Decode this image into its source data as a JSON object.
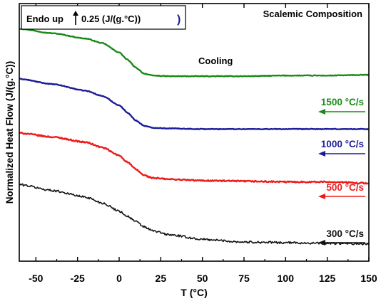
{
  "chart_data": {
    "type": "line",
    "title": "Scalemic Composition",
    "annotation": "Cooling",
    "scale_note": "Endo up",
    "scale_bar_label": "0.25 (J/(g.°C))",
    "xlabel": "T (°C)",
    "ylabel": "Normalized Heat Flow (J/(g.°C))",
    "xlim": [
      -60,
      150
    ],
    "x_ticks": [
      "-50",
      "-25",
      "0",
      "25",
      "50",
      "75",
      "100",
      "125",
      "150"
    ],
    "y_ticks_shown": false,
    "grid": false,
    "legend": "inline labels at right with left-pointing arrows",
    "y_units": "arbitrary offset, J/(g.°C)",
    "series": [
      {
        "name": "1500 °C/s",
        "color": "#1a8a1a",
        "x": [
          -60,
          -40,
          -20,
          -10,
          0,
          5,
          10,
          15,
          20,
          30,
          50,
          75,
          100,
          125,
          150
        ],
        "y": [
          3.52,
          3.45,
          3.37,
          3.3,
          3.16,
          3.05,
          2.93,
          2.84,
          2.81,
          2.8,
          2.8,
          2.8,
          2.81,
          2.81,
          2.82
        ]
      },
      {
        "name": "1000 °C/s",
        "color": "#1c1c9a",
        "x": [
          -60,
          -40,
          -20,
          -10,
          0,
          5,
          10,
          15,
          20,
          30,
          50,
          75,
          100,
          125,
          150
        ],
        "y": [
          2.76,
          2.68,
          2.58,
          2.5,
          2.36,
          2.25,
          2.13,
          2.05,
          2.02,
          2.01,
          2.0,
          2.0,
          2.0,
          2.0,
          2.0
        ]
      },
      {
        "name": "500 °C/s",
        "color": "#ee1a1a",
        "x": [
          -60,
          -40,
          -20,
          -10,
          0,
          5,
          10,
          15,
          20,
          30,
          50,
          75,
          100,
          125,
          150
        ],
        "y": [
          1.94,
          1.88,
          1.8,
          1.72,
          1.6,
          1.5,
          1.39,
          1.3,
          1.26,
          1.24,
          1.22,
          1.21,
          1.2,
          1.2,
          1.18
        ]
      },
      {
        "name": "300 °C/s",
        "color": "#111111",
        "x": [
          -60,
          -40,
          -20,
          -10,
          0,
          5,
          10,
          15,
          20,
          30,
          50,
          75,
          100,
          125,
          150
        ],
        "y": [
          1.16,
          1.07,
          0.97,
          0.88,
          0.76,
          0.68,
          0.6,
          0.52,
          0.46,
          0.4,
          0.33,
          0.29,
          0.28,
          0.27,
          0.26
        ]
      }
    ]
  }
}
